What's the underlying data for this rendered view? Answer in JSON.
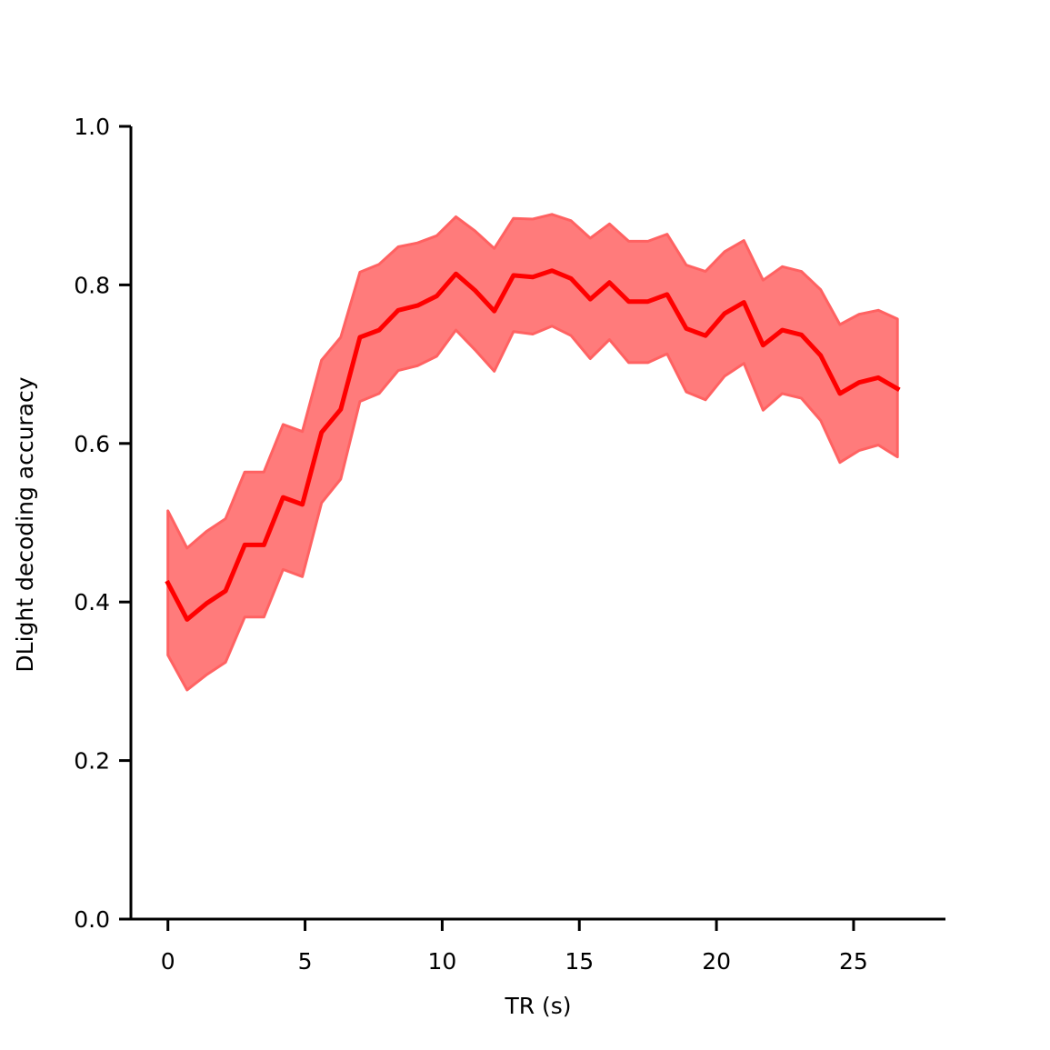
{
  "chart_data": {
    "type": "line",
    "title": "",
    "xlabel": "TR (s)",
    "ylabel": "DLight decoding accuracy",
    "xlim": [
      -1.35,
      28.35
    ],
    "ylim": [
      0.0,
      1.0
    ],
    "xticks": [
      0,
      5,
      10,
      15,
      20,
      25
    ],
    "xtick_labels": [
      "0",
      "5",
      "10",
      "15",
      "20",
      "25"
    ],
    "yticks": [
      0.0,
      0.2,
      0.4,
      0.6,
      0.8,
      1.0
    ],
    "ytick_labels": [
      "0.0",
      "0.2",
      "0.4",
      "0.6",
      "0.8",
      "1.0"
    ],
    "grid": false,
    "legend": "none",
    "colors": {
      "line": "#ff0000",
      "band_fill": "#ff7b7b",
      "band_edge": "#ff6262",
      "axis": "#000000"
    },
    "x": [
      0,
      0.7,
      1.4,
      2.1,
      2.8,
      3.5,
      4.2,
      4.9,
      5.6,
      6.3,
      7.0,
      7.7,
      8.4,
      9.1,
      9.8,
      10.5,
      11.2,
      11.9,
      12.6,
      13.3,
      14.0,
      14.7,
      15.4,
      16.1,
      16.8,
      17.5,
      18.2,
      18.9,
      19.6,
      20.3,
      21.0,
      21.7,
      22.4,
      23.1,
      23.8,
      24.5,
      25.2,
      25.9,
      26.6
    ],
    "series": [
      {
        "values": [
          0.424,
          0.378,
          0.398,
          0.414,
          0.472,
          0.472,
          0.532,
          0.523,
          0.614,
          0.643,
          0.734,
          0.743,
          0.768,
          0.774,
          0.786,
          0.814,
          0.793,
          0.767,
          0.812,
          0.81,
          0.818,
          0.808,
          0.782,
          0.803,
          0.779,
          0.779,
          0.788,
          0.745,
          0.736,
          0.764,
          0.778,
          0.724,
          0.743,
          0.737,
          0.711,
          0.663,
          0.677,
          0.683,
          0.669
        ],
        "upper": [
          0.515,
          0.468,
          0.489,
          0.505,
          0.564,
          0.564,
          0.624,
          0.615,
          0.705,
          0.734,
          0.816,
          0.826,
          0.848,
          0.853,
          0.862,
          0.886,
          0.868,
          0.846,
          0.884,
          0.883,
          0.889,
          0.881,
          0.859,
          0.877,
          0.855,
          0.855,
          0.864,
          0.825,
          0.817,
          0.842,
          0.856,
          0.806,
          0.823,
          0.817,
          0.794,
          0.75,
          0.763,
          0.768,
          0.757
        ],
        "lower": [
          0.333,
          0.289,
          0.308,
          0.324,
          0.381,
          0.381,
          0.441,
          0.432,
          0.525,
          0.555,
          0.653,
          0.663,
          0.692,
          0.698,
          0.71,
          0.743,
          0.718,
          0.691,
          0.741,
          0.738,
          0.748,
          0.736,
          0.707,
          0.731,
          0.702,
          0.702,
          0.713,
          0.665,
          0.655,
          0.685,
          0.701,
          0.642,
          0.663,
          0.657,
          0.629,
          0.576,
          0.591,
          0.598,
          0.583
        ]
      }
    ]
  }
}
